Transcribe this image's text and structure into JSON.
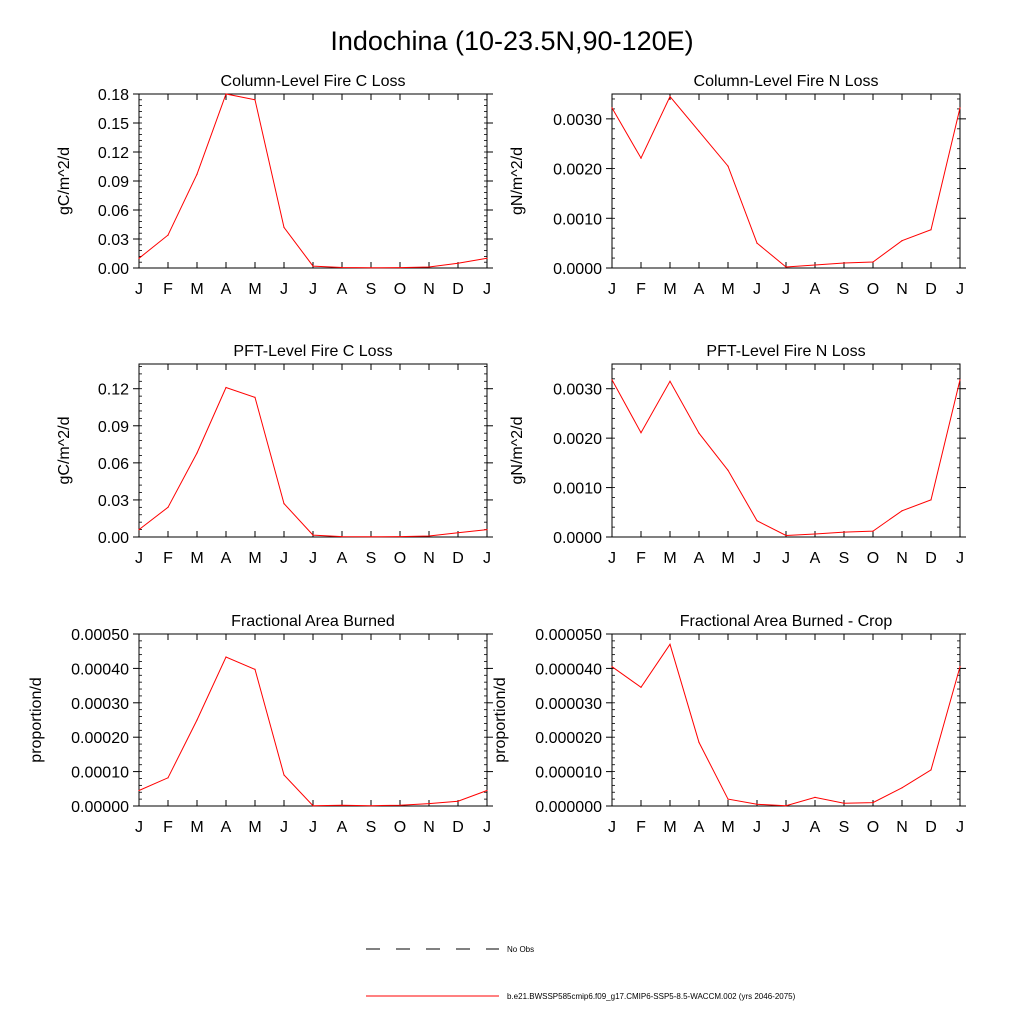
{
  "figure_title": "Indochina (10-23.5N,90-120E)",
  "chart_data": [
    {
      "type": "line",
      "title": "Column-Level Fire C Loss",
      "ylabel": "gC/m^2/d",
      "xlabel": "",
      "categories": [
        "J",
        "F",
        "M",
        "A",
        "M",
        "J",
        "J",
        "A",
        "S",
        "O",
        "N",
        "D",
        "J"
      ],
      "ylim": [
        0,
        0.18
      ],
      "yticks": [
        "0.00",
        "0.03",
        "0.06",
        "0.09",
        "0.12",
        "0.15",
        "0.18"
      ],
      "series": [
        {
          "values": [
            0.01,
            0.034,
            0.097,
            0.18,
            0.174,
            0.042,
            0.002,
            0.0005,
            0.0002,
            0.0004,
            0.001,
            0.005,
            0.01
          ]
        }
      ]
    },
    {
      "type": "line",
      "title": "Column-Level Fire N Loss",
      "ylabel": "gN/m^2/d",
      "xlabel": "",
      "categories": [
        "J",
        "F",
        "M",
        "A",
        "M",
        "J",
        "J",
        "A",
        "S",
        "O",
        "N",
        "D",
        "J"
      ],
      "ylim": [
        0,
        0.0035
      ],
      "yticks": [
        "0.0000",
        "0.0010",
        "0.0020",
        "0.0030"
      ],
      "series": [
        {
          "values": [
            0.00322,
            0.00221,
            0.00345,
            0.00275,
            0.00205,
            0.0005,
            2e-05,
            6e-05,
            0.0001,
            0.00012,
            0.00055,
            0.00077,
            0.00322
          ]
        }
      ]
    },
    {
      "type": "line",
      "title": "PFT-Level Fire C Loss",
      "ylabel": "gC/m^2/d",
      "xlabel": "",
      "categories": [
        "J",
        "F",
        "M",
        "A",
        "M",
        "J",
        "J",
        "A",
        "S",
        "O",
        "N",
        "D",
        "J"
      ],
      "ylim": [
        0,
        0.14
      ],
      "yticks": [
        "0.00",
        "0.03",
        "0.06",
        "0.09",
        "0.12"
      ],
      "series": [
        {
          "values": [
            0.006,
            0.024,
            0.068,
            0.121,
            0.113,
            0.027,
            0.0015,
            0.0003,
            0.0002,
            0.0003,
            0.0008,
            0.0035,
            0.006
          ]
        }
      ]
    },
    {
      "type": "line",
      "title": "PFT-Level Fire N Loss",
      "ylabel": "gN/m^2/d",
      "xlabel": "",
      "categories": [
        "J",
        "F",
        "M",
        "A",
        "M",
        "J",
        "J",
        "A",
        "S",
        "O",
        "N",
        "D",
        "J"
      ],
      "ylim": [
        0,
        0.0035
      ],
      "yticks": [
        "0.0000",
        "0.0010",
        "0.0020",
        "0.0030"
      ],
      "series": [
        {
          "values": [
            0.00318,
            0.00211,
            0.00315,
            0.0021,
            0.00135,
            0.00033,
            3e-05,
            6e-05,
            0.0001,
            0.00012,
            0.00053,
            0.00075,
            0.00318
          ]
        }
      ]
    },
    {
      "type": "line",
      "title": "Fractional Area Burned",
      "ylabel": "proportion/d",
      "xlabel": "",
      "categories": [
        "J",
        "F",
        "M",
        "A",
        "M",
        "J",
        "J",
        "A",
        "S",
        "O",
        "N",
        "D",
        "J"
      ],
      "ylim": [
        0,
        0.0005
      ],
      "yticks": [
        "0.00000",
        "0.00010",
        "0.00020",
        "0.00030",
        "0.00040",
        "0.00050"
      ],
      "series": [
        {
          "values": [
            4.5e-05,
            8.2e-05,
            0.00025,
            0.000433,
            0.000397,
            9e-05,
            1e-06,
            2e-06,
            1e-06,
            2e-06,
            7e-06,
            1.4e-05,
            4.5e-05
          ]
        }
      ]
    },
    {
      "type": "line",
      "title": "Fractional Area Burned - Crop",
      "ylabel": "proportion/d",
      "xlabel": "",
      "categories": [
        "J",
        "F",
        "M",
        "A",
        "M",
        "J",
        "J",
        "A",
        "S",
        "O",
        "N",
        "D",
        "J"
      ],
      "ylim": [
        0,
        5e-05
      ],
      "yticks": [
        "0.000000",
        "0.000010",
        "0.000020",
        "0.000030",
        "0.000040",
        "0.000050"
      ],
      "series": [
        {
          "values": [
            4.05e-05,
            3.45e-05,
            4.7e-05,
            1.85e-05,
            2e-06,
            5e-07,
            1e-07,
            2.5e-06,
            8e-07,
            1e-06,
            5.3e-06,
            1.05e-05,
            4.05e-05
          ]
        }
      ]
    }
  ],
  "legend": {
    "entries": [
      {
        "label": "No Obs",
        "style": "dashed",
        "color": "#000000"
      },
      {
        "label": "b.e21.BWSSP585cmip6.f09_g17.CMIP6-SSP5-8.5-WACCM.002 (yrs 2046-2075)",
        "style": "solid",
        "color": "#ff0000"
      }
    ]
  },
  "colors": {
    "series": "#ff0000",
    "axes": "#000000",
    "background": "#ffffff"
  }
}
